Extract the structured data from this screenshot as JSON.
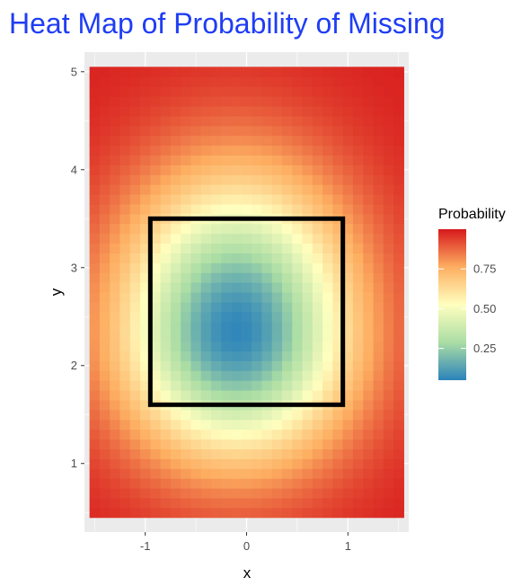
{
  "chart_data": {
    "type": "heatmap",
    "title": "Heat Map of Probability of Missing",
    "xlabel": "x",
    "ylabel": "y",
    "xlim": [
      -1.6,
      1.6
    ],
    "ylim": [
      0.3,
      5.2
    ],
    "x_ticks": [
      -1,
      0,
      1
    ],
    "x_tick_labels": [
      "-1",
      "0",
      "1"
    ],
    "y_ticks": [
      1,
      2,
      3,
      4,
      5
    ],
    "y_tick_labels": [
      "1",
      "2",
      "3",
      "4",
      "5"
    ],
    "grid": true,
    "tile_x_range": [
      -1.55,
      1.55
    ],
    "tile_y_range": [
      0.45,
      5.05
    ],
    "tile_columns": 31,
    "tile_rows": 46,
    "probability_model": {
      "center_x": -0.1,
      "center_y": 2.35,
      "min_probability": 0.06,
      "x_scale": 0.2,
      "y_scale": 0.11,
      "low_y_scale": 0.16,
      "max_probability": 0.99
    },
    "strike_zone": {
      "x": [
        -0.95,
        0.95
      ],
      "y": [
        1.6,
        3.5
      ]
    },
    "legend": {
      "title": "Probability",
      "placement": "right",
      "min": 0.05,
      "max": 1.0,
      "breaks": [
        0.25,
        0.5,
        0.75
      ],
      "break_labels": [
        "0.25",
        "0.50",
        "0.75"
      ]
    },
    "colors": {
      "palette": [
        "#2b83ba",
        "#abdda4",
        "#ffffbf",
        "#fdae61",
        "#d7191c"
      ],
      "panel_background": "#ebebeb",
      "grid_line": "#ffffff",
      "title_color": "#1f3df5"
    }
  }
}
